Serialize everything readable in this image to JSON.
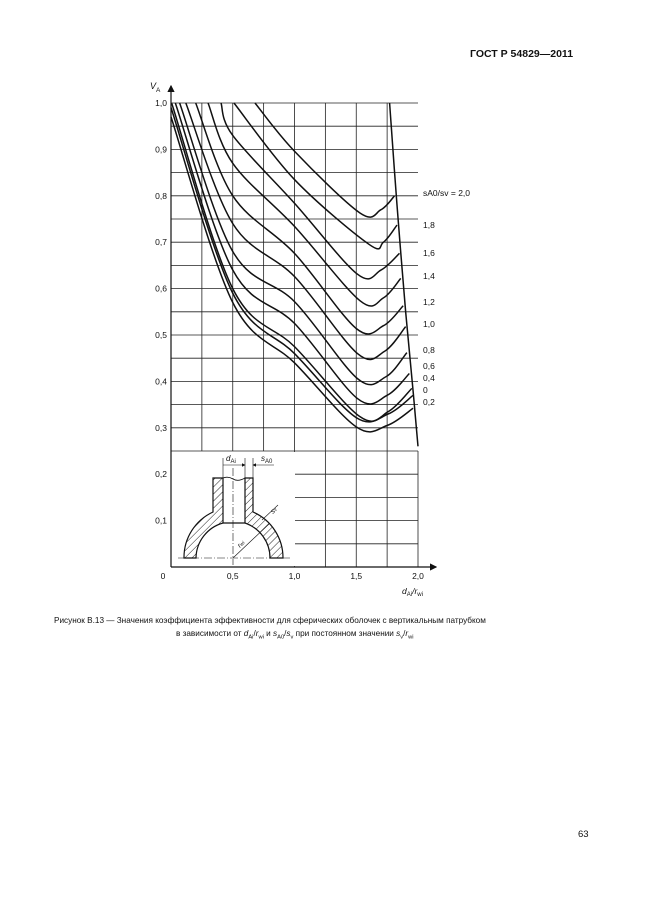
{
  "header": {
    "standard": "ГОСТ Р 54829—2011"
  },
  "page_number": "63",
  "caption": {
    "line1": "Рисунок В.13 — Значения коэффициента эффективности для сферических оболочек с вертикальным патрубком",
    "line2_prefix": "в зависимости от ",
    "var1": "d",
    "var1_sub": "Ai",
    "slash": "/",
    "var2": "r",
    "var2_sub": "wi",
    "and": " и ",
    "var3": "s",
    "var3_sub": "A0",
    "var4": "s",
    "var4_sub": "v",
    "mid": " при постоянном значении ",
    "var5": "s",
    "var5_sub": "v",
    "var6": "r",
    "var6_sub": "wi"
  },
  "inset": {
    "d_label": "d",
    "d_sub": "Ai",
    "s_label": "s",
    "s_sub": "A0",
    "sv_label": "s",
    "sv_sub": "v",
    "r_label": "r",
    "r_sub": "wi"
  },
  "chart_data": {
    "type": "line",
    "xlabel": "dAi/rwi",
    "ylabel": "VA",
    "xlabel_parts": {
      "main": "d",
      "sub": "Ai",
      "slash": "/",
      "main2": "r",
      "sub2": "wi"
    },
    "ylabel_parts": {
      "main": "V",
      "sub": "A"
    },
    "xlim": [
      0,
      2.0
    ],
    "ylim": [
      0,
      1.0
    ],
    "x_ticks": [
      "0",
      "0,5",
      "1,0",
      "1,5",
      "2,0"
    ],
    "y_ticks": [
      "0,1",
      "0,2",
      "0,3",
      "0,4",
      "0,5",
      "0,6",
      "0,7",
      "0,8",
      "0,9",
      "1,0"
    ],
    "grid": true,
    "series_label_prefix": "sA0/sv = ",
    "series": [
      {
        "name": "2,0",
        "points": [
          [
            0.68,
            1.0
          ],
          [
            1.0,
            0.896
          ],
          [
            1.53,
            0.763
          ],
          [
            1.7,
            0.77
          ],
          [
            1.81,
            0.8
          ]
        ]
      },
      {
        "name": "1,8",
        "points": [
          [
            0.51,
            1.0
          ],
          [
            1.0,
            0.835
          ],
          [
            1.6,
            0.696
          ],
          [
            1.72,
            0.7
          ],
          [
            1.83,
            0.737
          ]
        ]
      },
      {
        "name": "1,6",
        "points": [
          [
            0.405,
            1.0
          ],
          [
            0.5,
            0.93
          ],
          [
            1.0,
            0.784
          ],
          [
            1.51,
            0.631
          ],
          [
            1.7,
            0.64
          ],
          [
            1.85,
            0.676
          ]
        ]
      },
      {
        "name": "1,4",
        "points": [
          [
            0.3,
            1.0
          ],
          [
            0.5,
            0.87
          ],
          [
            1.0,
            0.734
          ],
          [
            1.53,
            0.574
          ],
          [
            1.72,
            0.58
          ],
          [
            1.86,
            0.622
          ]
        ]
      },
      {
        "name": "1,2",
        "points": [
          [
            0.2,
            1.0
          ],
          [
            0.5,
            0.8
          ],
          [
            1.0,
            0.676
          ],
          [
            1.5,
            0.514
          ],
          [
            1.72,
            0.52
          ],
          [
            1.88,
            0.563
          ]
        ]
      },
      {
        "name": "1,0",
        "points": [
          [
            0.12,
            1.0
          ],
          [
            0.5,
            0.74
          ],
          [
            1.0,
            0.626
          ],
          [
            1.51,
            0.46
          ],
          [
            1.73,
            0.465
          ],
          [
            1.9,
            0.518
          ]
        ]
      },
      {
        "name": "0,8",
        "points": [
          [
            0.07,
            1.0
          ],
          [
            0.5,
            0.68
          ],
          [
            1.0,
            0.572
          ],
          [
            1.51,
            0.406
          ],
          [
            1.74,
            0.41
          ],
          [
            1.91,
            0.462
          ]
        ]
      },
      {
        "name": "0,6",
        "points": [
          [
            0.035,
            1.0
          ],
          [
            0.5,
            0.64
          ],
          [
            1.0,
            0.525
          ],
          [
            1.51,
            0.363
          ],
          [
            1.75,
            0.37
          ],
          [
            1.93,
            0.417
          ]
        ]
      },
      {
        "name": "0,4",
        "points": [
          [
            0.005,
            1.0
          ],
          [
            0.5,
            0.6
          ],
          [
            1.0,
            0.475
          ],
          [
            1.53,
            0.324
          ],
          [
            1.76,
            0.335
          ],
          [
            1.95,
            0.385
          ]
        ]
      },
      {
        "name": "0",
        "points": [
          [
            0.0,
            0.99
          ],
          [
            0.5,
            0.59
          ],
          [
            1.0,
            0.46
          ],
          [
            1.5,
            0.322
          ],
          [
            1.76,
            0.33
          ],
          [
            1.96,
            0.37
          ]
        ]
      },
      {
        "name": "0,2",
        "points": [
          [
            0.0,
            0.97
          ],
          [
            0.5,
            0.57
          ],
          [
            1.0,
            0.44
          ],
          [
            1.5,
            0.302
          ],
          [
            1.75,
            0.305
          ],
          [
            1.96,
            0.342
          ]
        ]
      }
    ],
    "boundary": {
      "points": [
        [
          1.77,
          1.0
        ],
        [
          1.83,
          0.78
        ],
        [
          1.9,
          0.55
        ],
        [
          1.96,
          0.38
        ],
        [
          2.0,
          0.26
        ]
      ]
    }
  }
}
